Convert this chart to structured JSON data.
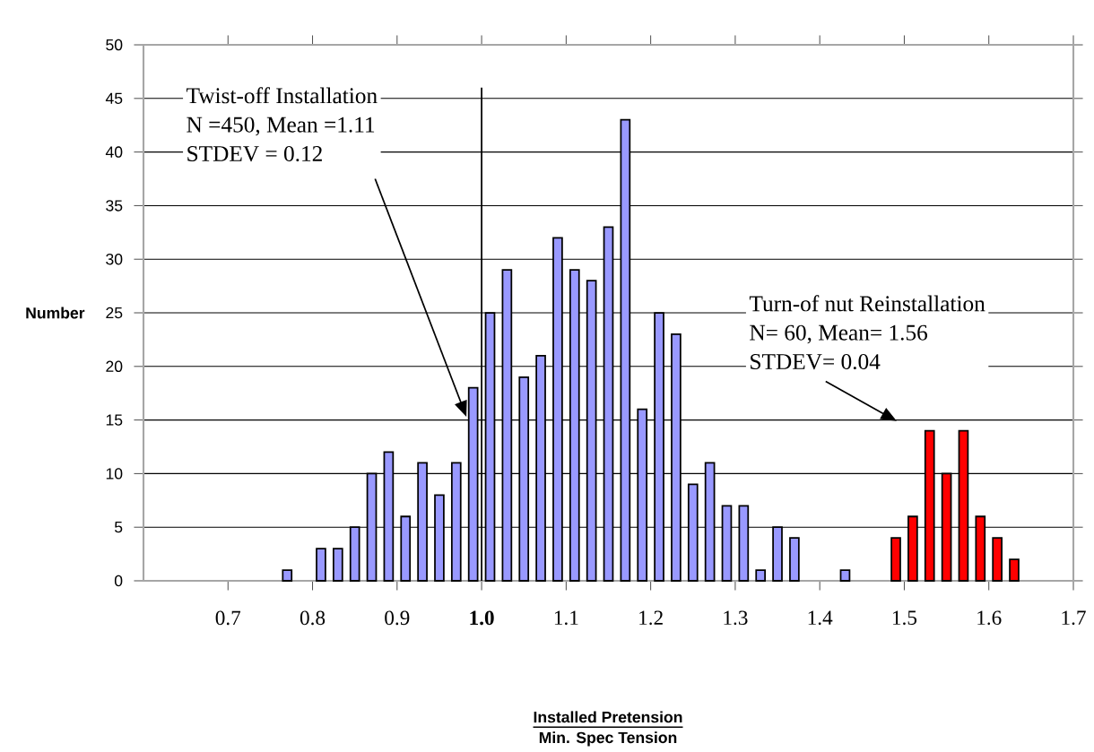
{
  "chart_data": {
    "type": "bar",
    "ylabel": "Number",
    "series": [
      {
        "color": "#9999ff",
        "x": [
          0.77,
          0.81,
          0.83,
          0.85,
          0.87,
          0.89,
          0.91,
          0.93,
          0.95,
          0.97,
          0.99,
          1.01,
          1.03,
          1.05,
          1.07,
          1.09,
          1.11,
          1.13,
          1.15,
          1.17,
          1.19,
          1.21,
          1.23,
          1.25,
          1.27,
          1.29,
          1.31,
          1.33,
          1.35,
          1.37,
          1.43
        ],
        "values": [
          1,
          3,
          3,
          5,
          10,
          12,
          6,
          11,
          8,
          11,
          18,
          25,
          29,
          19,
          21,
          32,
          29,
          28,
          33,
          43,
          16,
          25,
          23,
          9,
          11,
          7,
          7,
          1,
          5,
          4,
          1
        ]
      },
      {
        "color": "#ff0000",
        "x": [
          1.49,
          1.51,
          1.53,
          1.55,
          1.57,
          1.59,
          1.61,
          1.63
        ],
        "values": [
          4,
          6,
          14,
          10,
          14,
          6,
          4,
          2
        ]
      }
    ],
    "xlim": [
      0.6,
      1.7
    ],
    "ylim": [
      0,
      50
    ],
    "xticks": [
      0.7,
      0.8,
      0.9,
      {
        "value": 1.0,
        "label": "**1.0**"
      },
      1.1,
      1.2,
      1.3,
      1.4,
      1.5,
      1.6,
      1.7
    ],
    "yticks": [
      0,
      5,
      10,
      15,
      20,
      25,
      30,
      35,
      40,
      45,
      50
    ],
    "grid": "y",
    "ref_lines": [
      {
        "axis": "x",
        "value": 1.0
      }
    ],
    "annotations": [
      "Installed Pretension",
      "Min. Spec Tension",
      "Twist-off Installation",
      "N =450, Mean =1.11",
      "STDEV = 0.12",
      "Turn-of nut Reinstallation",
      "N= 60, Mean= 1.56",
      "STDEV= 0.04"
    ]
  }
}
